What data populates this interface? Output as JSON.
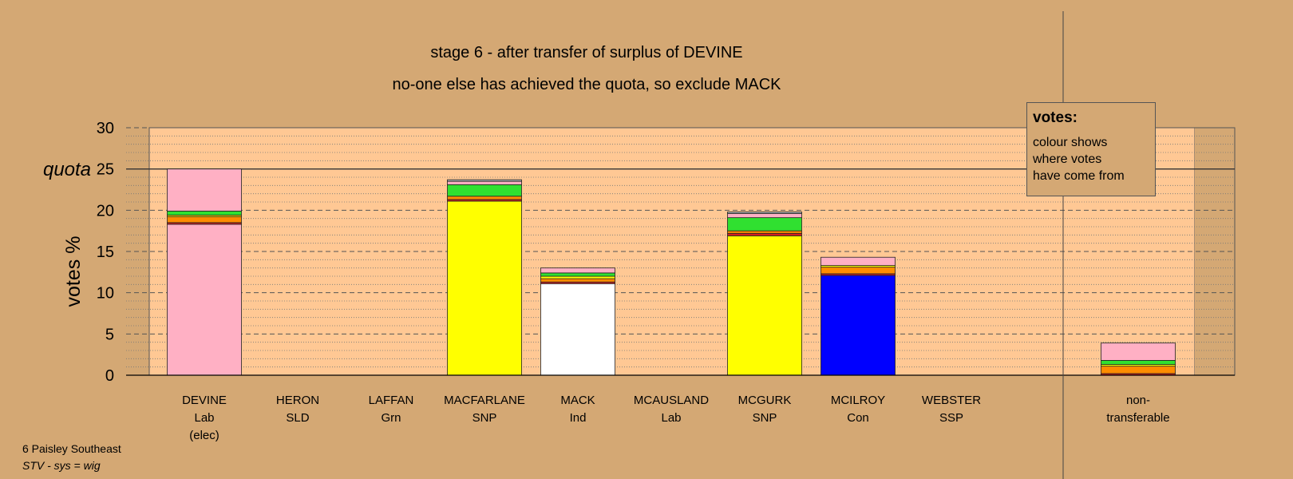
{
  "chart_data": {
    "type": "bar",
    "title": "stage 6 - after transfer of surplus of DEVINE",
    "subtitle": "no-one else has achieved the quota, so exclude MACK",
    "ylabel": "votes %",
    "ylim": [
      0,
      30
    ],
    "yticks": [
      "0",
      "5",
      "10",
      "15",
      "20",
      "25",
      "30"
    ],
    "quota": {
      "label": "quota",
      "value": 25
    },
    "grid": true,
    "categories": [
      {
        "name": "DEVINE",
        "party": "Lab",
        "note": "(elec)"
      },
      {
        "name": "HERON",
        "party": "SLD",
        "note": ""
      },
      {
        "name": "LAFFAN",
        "party": "Grn",
        "note": ""
      },
      {
        "name": "MACFARLANE",
        "party": "SNP",
        "note": ""
      },
      {
        "name": "MACK",
        "party": "Ind",
        "note": ""
      },
      {
        "name": "MCAUSLAND",
        "party": "Lab",
        "note": ""
      },
      {
        "name": "MCGURK",
        "party": "SNP",
        "note": ""
      },
      {
        "name": "MCILROY",
        "party": "Con",
        "note": ""
      },
      {
        "name": "WEBSTER",
        "party": "SSP",
        "note": ""
      }
    ],
    "nontransferable": {
      "line1": "non-",
      "line2": "transferable"
    },
    "bars": [
      {
        "category": "DEVINE",
        "segments": [
          {
            "color": "#ffb0c4",
            "value": 18.3
          },
          {
            "color": "#d42020",
            "value": 0.2
          },
          {
            "color": "#ff8c00",
            "value": 0.7
          },
          {
            "color": "#ffd700",
            "value": 0.2
          },
          {
            "color": "#30e030",
            "value": 0.5
          },
          {
            "color": "#ffb0c4",
            "value": 5.1
          }
        ]
      },
      {
        "category": "HERON",
        "segments": []
      },
      {
        "category": "LAFFAN",
        "segments": []
      },
      {
        "category": "MACFARLANE",
        "segments": [
          {
            "color": "#ffff00",
            "value": 21.1
          },
          {
            "color": "#d42020",
            "value": 0.2
          },
          {
            "color": "#ff8c00",
            "value": 0.4
          },
          {
            "color": "#30e030",
            "value": 1.4
          },
          {
            "color": "#ffb0c4",
            "value": 0.4
          },
          {
            "color": "#b0b0b0",
            "value": 0.2
          }
        ]
      },
      {
        "category": "MACK",
        "segments": [
          {
            "color": "#ffffff",
            "value": 11.1
          },
          {
            "color": "#d42020",
            "value": 0.2
          },
          {
            "color": "#ff8c00",
            "value": 0.4
          },
          {
            "color": "#ffff00",
            "value": 0.3
          },
          {
            "color": "#30e030",
            "value": 0.4
          },
          {
            "color": "#ffb0c4",
            "value": 0.6
          }
        ]
      },
      {
        "category": "MCAUSLAND",
        "segments": []
      },
      {
        "category": "MCGURK",
        "segments": [
          {
            "color": "#ffff00",
            "value": 16.9
          },
          {
            "color": "#d42020",
            "value": 0.3
          },
          {
            "color": "#ff8c00",
            "value": 0.3
          },
          {
            "color": "#30e030",
            "value": 1.6
          },
          {
            "color": "#ffb0c4",
            "value": 0.5
          },
          {
            "color": "#b0b0b0",
            "value": 0.2
          }
        ]
      },
      {
        "category": "MCILROY",
        "segments": [
          {
            "color": "#0000ff",
            "value": 12.1
          },
          {
            "color": "#d42020",
            "value": 0.2
          },
          {
            "color": "#ff8c00",
            "value": 0.8
          },
          {
            "color": "#ffff00",
            "value": 0.2
          },
          {
            "color": "#ffb0c4",
            "value": 1.0
          }
        ]
      },
      {
        "category": "WEBSTER",
        "segments": []
      },
      {
        "category": "non-transferable",
        "segments": [
          {
            "color": "#d42020",
            "value": 0.2
          },
          {
            "color": "#ff8c00",
            "value": 0.9
          },
          {
            "color": "#ffff00",
            "value": 0.2
          },
          {
            "color": "#30e030",
            "value": 0.5
          },
          {
            "color": "#ffb0c4",
            "value": 2.1
          }
        ]
      }
    ]
  },
  "legend": {
    "title": "votes:",
    "line1": "colour shows",
    "line2": "where votes",
    "line3": "have come from"
  },
  "footer": {
    "constituency": "6 Paisley Southeast",
    "system": "STV - sys = wig"
  },
  "colors": {
    "background": "#d4a874",
    "plot_area": "#ffc894"
  }
}
